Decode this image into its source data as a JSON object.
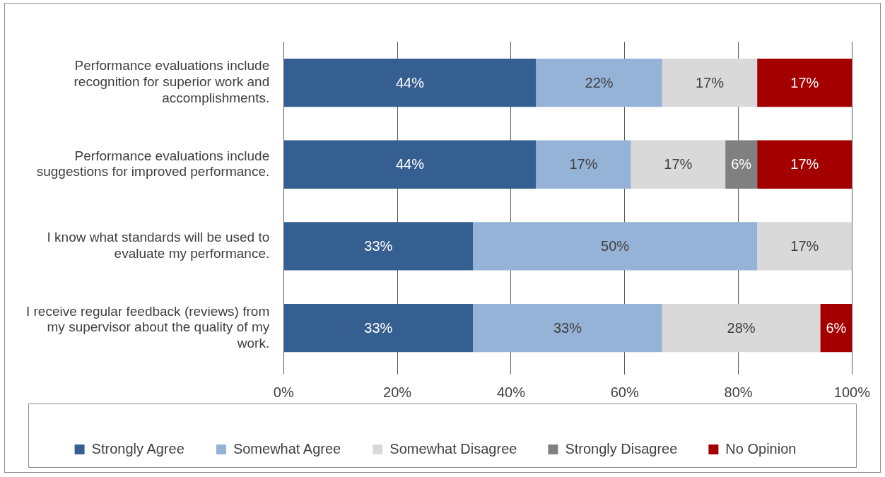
{
  "chart_data": {
    "type": "bar",
    "orientation": "horizontal",
    "stacked": true,
    "categories": [
      "Performance evaluations include recognition for superior work and accomplishments.",
      "Performance evaluations include suggestions for improved performance.",
      "I know what standards will be used to evaluate my performance.",
      "I receive regular feedback (reviews) from my supervisor about the quality of my work."
    ],
    "series": [
      {
        "name": "Strongly Agree",
        "color": "#365f91",
        "values": [
          44.4,
          44.4,
          33.3,
          33.3
        ],
        "value_labels": [
          "44%",
          "44%",
          "33%",
          "33%"
        ]
      },
      {
        "name": "Somewhat Agree",
        "color": "#95b3d7",
        "values": [
          22.2,
          16.7,
          50,
          33.3
        ],
        "value_labels": [
          "22%",
          "17%",
          "50%",
          "33%"
        ]
      },
      {
        "name": "Somewhat Disagree",
        "color": "#d9d9d9",
        "values": [
          16.7,
          16.6,
          16.7,
          27.8
        ],
        "value_labels": [
          "17%",
          "17%",
          "17%",
          "28%"
        ]
      },
      {
        "name": "Strongly Disagree",
        "color": "#808080",
        "values": [
          null,
          5.6,
          null,
          null
        ],
        "value_labels": [
          null,
          "6%",
          null,
          null
        ]
      },
      {
        "name": "No Opinion",
        "color": "#a50000",
        "values": [
          16.7,
          16.7,
          null,
          5.6
        ],
        "value_labels": [
          "17%",
          "17%",
          null,
          "6%"
        ]
      }
    ],
    "xlim": [
      0,
      100
    ],
    "xticks": [
      {
        "value": 0,
        "label": "0%"
      },
      {
        "value": 20,
        "label": "20%"
      },
      {
        "value": 40,
        "label": "40%"
      },
      {
        "value": 60,
        "label": "60%"
      },
      {
        "value": 80,
        "label": "80%"
      },
      {
        "value": 100,
        "label": "100%"
      }
    ],
    "grid": "x",
    "legend": "bottom"
  }
}
